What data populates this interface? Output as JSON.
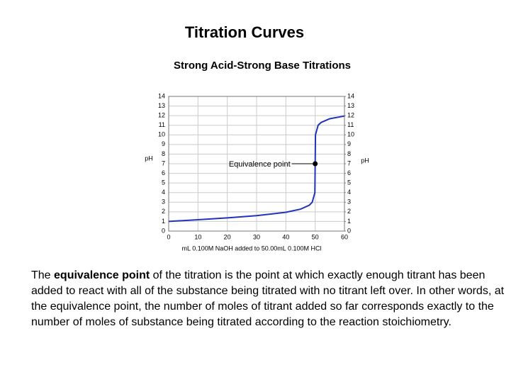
{
  "chart_data": {
    "type": "line",
    "title": "Titration Curves",
    "subtitle": "Strong Acid-Strong Base Titrations",
    "x_label": "mL 0.100M NaOH added to 50.00mL 0.100M HCl",
    "y_label": "pH",
    "y2_label": "pH",
    "x": [
      0,
      10,
      20,
      30,
      40,
      45,
      48,
      49,
      49.9,
      50,
      50.1,
      51,
      52,
      55,
      60
    ],
    "values": [
      1.0,
      1.18,
      1.37,
      1.6,
      1.95,
      2.28,
      2.69,
      3.0,
      4.0,
      7.0,
      10.0,
      11.0,
      11.29,
      11.68,
      11.96
    ],
    "color": "#2233bb",
    "xlim": [
      0,
      60
    ],
    "xticks": [
      0,
      10,
      20,
      30,
      40,
      50,
      60
    ],
    "ylim": [
      0,
      14
    ],
    "yticks": [
      0,
      1,
      2,
      3,
      4,
      5,
      6,
      7,
      8,
      9,
      10,
      11,
      12,
      13,
      14
    ],
    "y2lim": [
      0,
      14
    ],
    "y2ticks": [
      0,
      1,
      2,
      3,
      4,
      5,
      6,
      7,
      8,
      9,
      10,
      11,
      12,
      13,
      14
    ],
    "grid": true,
    "annotation": {
      "text": "Equivalence point",
      "x": 50,
      "y": 7
    }
  },
  "paragraph": {
    "before": "The",
    "bold": "equivalence point",
    "after": "of the titration is the point at which exactly enough titrant has been added to react with all of the substance being titrated with no titrant left over. In other words, at the equivalence point, the number of moles of titrant added so far corresponds exactly to the number of moles of substance being titrated according to the reaction stoichiometry."
  }
}
